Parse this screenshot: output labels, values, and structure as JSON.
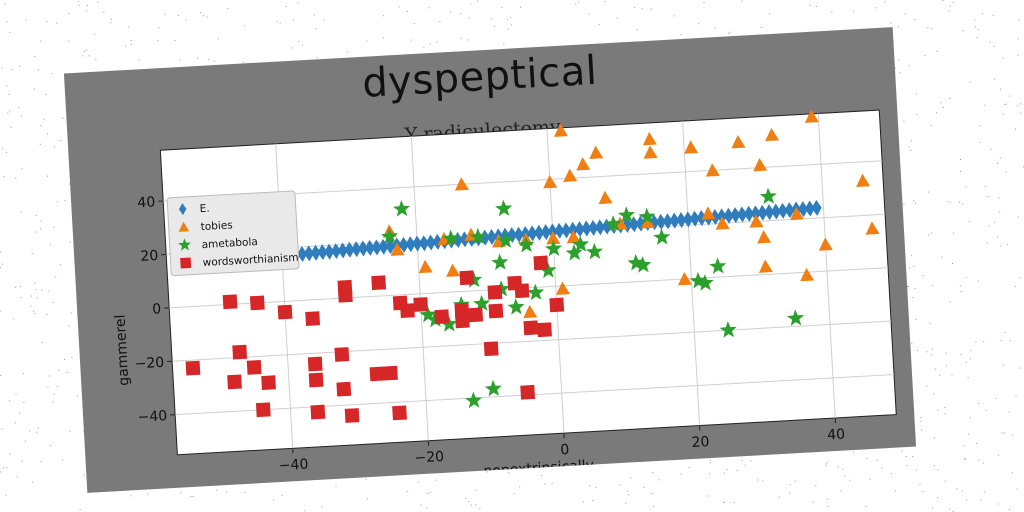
{
  "chart_data": {
    "type": "scatter",
    "title": "dyspeptical",
    "subtitle": "Y radiculectomy",
    "xlabel": "nonextrinsically",
    "ylabel": "gammerel",
    "xlim": [
      -57,
      49
    ],
    "ylim": [
      -55,
      59
    ],
    "xticks": [
      -40,
      -20,
      0,
      20,
      40
    ],
    "yticks": [
      -40,
      -20,
      0,
      20,
      40
    ],
    "grid": true,
    "legend_position": "top-left",
    "series": [
      {
        "name": "E.",
        "marker": "diamond",
        "color": "#2f7dbd",
        "points": [
          [
            -40,
            17
          ],
          [
            -39,
            17.1
          ],
          [
            -38,
            17.2
          ],
          [
            -37,
            17.3
          ],
          [
            -36,
            17.4
          ],
          [
            -35,
            17.5
          ],
          [
            -34,
            17.6
          ],
          [
            -33,
            17.6
          ],
          [
            -32,
            17.7
          ],
          [
            -31,
            17.8
          ],
          [
            -30,
            17.9
          ],
          [
            -29,
            18
          ],
          [
            -28,
            18.1
          ],
          [
            -27,
            18.2
          ],
          [
            -26,
            18.2
          ],
          [
            -25,
            18.3
          ],
          [
            -24,
            18.4
          ],
          [
            -23,
            18.5
          ],
          [
            -22,
            18.6
          ],
          [
            -21,
            18.7
          ],
          [
            -20,
            18.8
          ],
          [
            -19,
            18.8
          ],
          [
            -18,
            18.9
          ],
          [
            -17,
            19
          ],
          [
            -16,
            19.1
          ],
          [
            -15,
            19.2
          ],
          [
            -14,
            19.3
          ],
          [
            -13,
            19.4
          ],
          [
            -12,
            19.4
          ],
          [
            -11,
            19.5
          ],
          [
            -10,
            19.6
          ],
          [
            -9,
            19.7
          ],
          [
            -8,
            19.8
          ],
          [
            -7,
            19.9
          ],
          [
            -6,
            20
          ],
          [
            -5,
            20
          ],
          [
            -4,
            20.1
          ],
          [
            -3,
            20.2
          ],
          [
            -2,
            20.3
          ],
          [
            -1,
            20.4
          ],
          [
            0,
            20.5
          ],
          [
            1,
            20.6
          ],
          [
            2,
            20.6
          ],
          [
            3,
            20.7
          ],
          [
            4,
            20.8
          ],
          [
            5,
            20.9
          ],
          [
            6,
            21
          ],
          [
            7,
            21.1
          ],
          [
            8,
            21.2
          ],
          [
            9,
            21.2
          ],
          [
            10,
            21.3
          ],
          [
            11,
            21.4
          ],
          [
            12,
            21.5
          ],
          [
            13,
            21.6
          ],
          [
            14,
            21.7
          ],
          [
            15,
            21.8
          ],
          [
            16,
            21.8
          ],
          [
            17,
            21.9
          ],
          [
            18,
            22
          ],
          [
            19,
            22.1
          ],
          [
            20,
            22.2
          ],
          [
            21,
            22.3
          ],
          [
            22,
            22.4
          ],
          [
            23,
            22.4
          ],
          [
            24,
            22.5
          ],
          [
            25,
            22.6
          ],
          [
            26,
            22.7
          ],
          [
            27,
            22.8
          ],
          [
            28,
            22.9
          ],
          [
            29,
            23
          ],
          [
            30,
            23
          ],
          [
            31,
            23.1
          ],
          [
            32,
            23.2
          ],
          [
            33,
            23.3
          ],
          [
            34,
            23.4
          ],
          [
            35,
            23.5
          ],
          [
            36,
            23.6
          ],
          [
            37,
            23.6
          ],
          [
            38,
            23.7
          ],
          [
            39,
            23.8
          ]
        ]
      },
      {
        "name": "tobies",
        "marker": "triangle",
        "color": "#f07f13",
        "points": [
          [
            2,
            58
          ],
          [
            15,
            53
          ],
          [
            39,
            58
          ],
          [
            -13,
            40
          ],
          [
            0,
            39
          ],
          [
            3,
            41
          ],
          [
            5,
            45
          ],
          [
            7,
            49
          ],
          [
            15,
            48
          ],
          [
            21,
            49
          ],
          [
            28,
            50
          ],
          [
            33,
            52
          ],
          [
            24,
            40
          ],
          [
            31,
            41
          ],
          [
            46,
            33
          ],
          [
            -24,
            24
          ],
          [
            -23,
            17
          ],
          [
            -19,
            10
          ],
          [
            -16,
            20
          ],
          [
            -12,
            21
          ],
          [
            -8,
            18
          ],
          [
            -4,
            18
          ],
          [
            0,
            18
          ],
          [
            3,
            18
          ],
          [
            8,
            32
          ],
          [
            10,
            22
          ],
          [
            14,
            22
          ],
          [
            23,
            24
          ],
          [
            25,
            20
          ],
          [
            30,
            20
          ],
          [
            36,
            22
          ],
          [
            31,
            14
          ],
          [
            31,
            3
          ],
          [
            47,
            15
          ],
          [
            40,
            10
          ],
          [
            37,
            -1
          ],
          [
            19,
            0
          ],
          [
            -15,
            8
          ],
          [
            -4,
            -9
          ],
          [
            1,
            -1
          ]
        ]
      },
      {
        "name": "ametabola",
        "marker": "star",
        "color": "#2ca02c",
        "points": [
          [
            -22,
            32
          ],
          [
            -24,
            22
          ],
          [
            -7,
            30
          ],
          [
            -15,
            20
          ],
          [
            -11,
            20
          ],
          [
            -7,
            18
          ],
          [
            -4,
            16
          ],
          [
            0,
            14
          ],
          [
            4,
            15
          ],
          [
            9,
            22
          ],
          [
            11,
            25
          ],
          [
            14,
            24
          ],
          [
            16,
            16
          ],
          [
            -8,
            10
          ],
          [
            -1,
            6
          ],
          [
            3,
            12
          ],
          [
            6,
            12
          ],
          [
            12,
            7
          ],
          [
            13,
            6
          ],
          [
            -12,
            4
          ],
          [
            -8,
            0
          ],
          [
            -3,
            -2
          ],
          [
            -14,
            -5
          ],
          [
            -11,
            -5
          ],
          [
            -19,
            -8
          ],
          [
            -16,
            -12
          ],
          [
            -6,
            -7
          ],
          [
            22,
            -2
          ],
          [
            24,
            4
          ],
          [
            32,
            29
          ],
          [
            25,
            -20
          ],
          [
            35,
            -17
          ],
          [
            -10,
            -37
          ],
          [
            -13,
            -41
          ],
          [
            -18,
            -10
          ],
          [
            21,
            -1
          ]
        ]
      },
      {
        "name": "wordsworthianism",
        "marker": "square",
        "color": "#d62728",
        "points": [
          [
            -54,
            -23
          ],
          [
            -48,
            1
          ],
          [
            -44,
            0
          ],
          [
            -47,
            -18
          ],
          [
            -45,
            -24
          ],
          [
            -48,
            -29
          ],
          [
            -43,
            -30
          ],
          [
            -44,
            -40
          ],
          [
            -40,
            -4
          ],
          [
            -36,
            -7
          ],
          [
            -36,
            -24
          ],
          [
            -36,
            -30
          ],
          [
            -32,
            -21
          ],
          [
            -32,
            -34
          ],
          [
            -36,
            -42
          ],
          [
            -31,
            -44
          ],
          [
            -27,
            -29
          ],
          [
            -25,
            -29
          ],
          [
            -24,
            -44
          ],
          [
            -31,
            4
          ],
          [
            -31,
            1
          ],
          [
            -26,
            5
          ],
          [
            -23,
            -3
          ],
          [
            -22,
            -6
          ],
          [
            -20,
            -4
          ],
          [
            -17,
            -9
          ],
          [
            -14,
            -11
          ],
          [
            -12,
            -9
          ],
          [
            -13,
            5
          ],
          [
            -9,
            -8
          ],
          [
            -9,
            -1
          ],
          [
            -6,
            2
          ],
          [
            -5,
            -1
          ],
          [
            -4,
            -15
          ],
          [
            -2,
            -16
          ],
          [
            -2,
            9
          ],
          [
            0,
            -7
          ],
          [
            -10,
            -22
          ],
          [
            -5,
            -39
          ],
          [
            -14,
            -7
          ]
        ]
      }
    ]
  }
}
